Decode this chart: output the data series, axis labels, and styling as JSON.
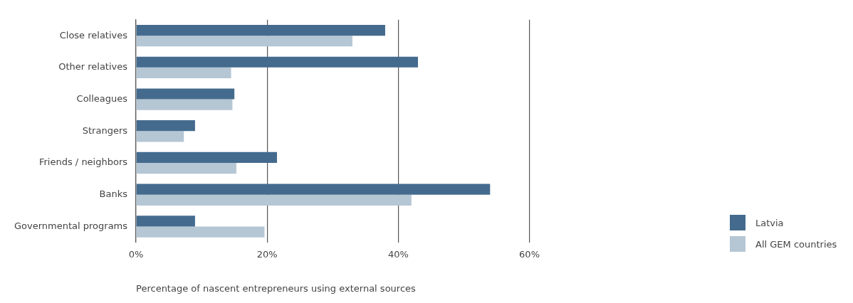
{
  "chart_data": {
    "type": "bar",
    "orientation": "horizontal",
    "xlabel": "Percentage of nascent entrepreneurs using external sources",
    "categories": [
      "Close relatives",
      "Other relatives",
      "Colleagues",
      "Strangers",
      "Friends / neighbors",
      "Banks",
      "Governmental programs"
    ],
    "series": [
      {
        "name": "Latvia",
        "color": "#446b8e",
        "values": [
          38,
          43,
          15,
          9,
          21.5,
          54,
          9
        ]
      },
      {
        "name": "All GEM countries",
        "color": "#b5c6d4",
        "values": [
          33,
          14.5,
          14.7,
          7.3,
          15.3,
          42,
          19.6
        ]
      }
    ],
    "xlim": [
      0,
      60
    ],
    "xticks": [
      {
        "value": 0,
        "label": "0%"
      },
      {
        "value": 20,
        "label": "20%"
      },
      {
        "value": 40,
        "label": "40%"
      },
      {
        "value": 60,
        "label": "60%"
      }
    ],
    "grid": "x",
    "legend": "bottom right"
  }
}
